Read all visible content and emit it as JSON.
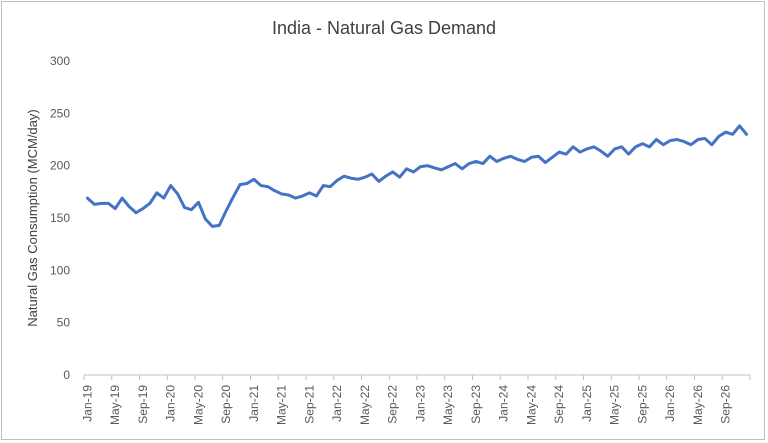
{
  "chart_data": {
    "type": "line",
    "title": "India - Natural Gas Demand",
    "xlabel": "",
    "ylabel": "Natural Gas Consumption (MCM/day)",
    "ylim": [
      0,
      300
    ],
    "yticks": [
      0,
      50,
      100,
      150,
      200,
      250,
      300
    ],
    "grid": false,
    "legend": "none",
    "x_tick_labels": [
      "Jan-19",
      "May-19",
      "Sep-19",
      "Jan-20",
      "May-20",
      "Sep-20",
      "Jan-21",
      "May-21",
      "Sep-21",
      "Jan-22",
      "May-22",
      "Sep-22",
      "Jan-23",
      "May-23",
      "Sep-23",
      "Jan-24",
      "May-24",
      "Sep-24",
      "Jan-25",
      "May-25",
      "Sep-25",
      "Jan-26",
      "May-26",
      "Sep-26"
    ],
    "series": [
      {
        "color": "#4472c4",
        "x": [
          "2019-01",
          "2019-02",
          "2019-03",
          "2019-04",
          "2019-05",
          "2019-06",
          "2019-07",
          "2019-08",
          "2019-09",
          "2019-10",
          "2019-11",
          "2019-12",
          "2020-01",
          "2020-02",
          "2020-03",
          "2020-04",
          "2020-05",
          "2020-06",
          "2020-07",
          "2020-08",
          "2020-09",
          "2020-10",
          "2020-11",
          "2020-12",
          "2021-01",
          "2021-02",
          "2021-03",
          "2021-04",
          "2021-05",
          "2021-06",
          "2021-07",
          "2021-08",
          "2021-09",
          "2021-10",
          "2021-11",
          "2021-12",
          "2022-01",
          "2022-02",
          "2022-03",
          "2022-04",
          "2022-05",
          "2022-06",
          "2022-07",
          "2022-08",
          "2022-09",
          "2022-10",
          "2022-11",
          "2022-12",
          "2023-01",
          "2023-02",
          "2023-03",
          "2023-04",
          "2023-05",
          "2023-06",
          "2023-07",
          "2023-08",
          "2023-09",
          "2023-10",
          "2023-11",
          "2023-12",
          "2024-01",
          "2024-02",
          "2024-03",
          "2024-04",
          "2024-05",
          "2024-06",
          "2024-07",
          "2024-08",
          "2024-09",
          "2024-10",
          "2024-11",
          "2024-12",
          "2025-01",
          "2025-02",
          "2025-03",
          "2025-04",
          "2025-05",
          "2025-06",
          "2025-07",
          "2025-08",
          "2025-09",
          "2025-10",
          "2025-11",
          "2025-12",
          "2026-01",
          "2026-02",
          "2026-03",
          "2026-04",
          "2026-05",
          "2026-06",
          "2026-07",
          "2026-08",
          "2026-09",
          "2026-10",
          "2026-11",
          "2026-12"
        ],
        "values": [
          169,
          163,
          164,
          164,
          159,
          169,
          161,
          155,
          159,
          164,
          174,
          169,
          181,
          173,
          160,
          158,
          165,
          149,
          142,
          143,
          157,
          170,
          182,
          183,
          187,
          181,
          180,
          176,
          173,
          172,
          169,
          171,
          174,
          171,
          181,
          180,
          186,
          190,
          188,
          187,
          189,
          192,
          185,
          190,
          194,
          189,
          197,
          194,
          199,
          200,
          198,
          196,
          199,
          202,
          197,
          202,
          204,
          202,
          209,
          204,
          207,
          209,
          206,
          204,
          208,
          209,
          203,
          208,
          213,
          211,
          218,
          213,
          216,
          218,
          214,
          209,
          216,
          218,
          211,
          218,
          221,
          218,
          225,
          220,
          224,
          225,
          223,
          220,
          225,
          226,
          220,
          228,
          232,
          230,
          238,
          230
        ]
      }
    ]
  }
}
